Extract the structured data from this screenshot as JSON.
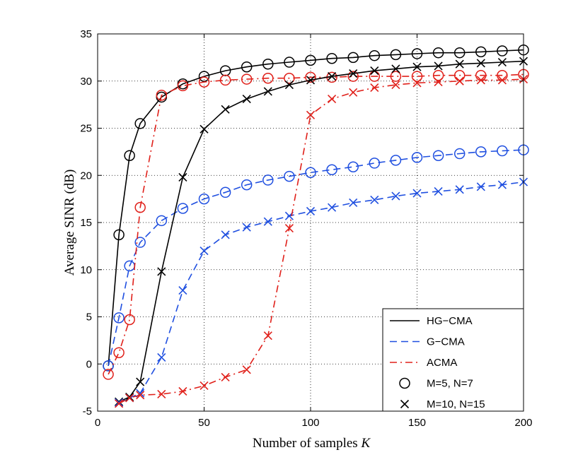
{
  "chart_data": {
    "type": "line",
    "title": "",
    "xlabel": "Number of samples",
    "xlabel_var": "K",
    "ylabel": "Average SINR (dB)",
    "xlim": [
      0,
      200
    ],
    "ylim": [
      -5,
      35
    ],
    "xticks": [
      0,
      50,
      100,
      150,
      200
    ],
    "yticks": [
      -5,
      0,
      5,
      10,
      15,
      20,
      25,
      30,
      35
    ],
    "grid": true,
    "legend_position": "bottom-right",
    "legend": [
      {
        "label": "HG−CMA",
        "kind": "line",
        "color": "#000000",
        "dash": "solid"
      },
      {
        "label": "G−CMA",
        "kind": "line",
        "color": "#1f4fe0",
        "dash": "dashed"
      },
      {
        "label": "ACMA",
        "kind": "line",
        "color": "#e0201a",
        "dash": "dashdot"
      },
      {
        "label": "M=5, N=7",
        "kind": "marker",
        "marker": "circle",
        "color": "#000000"
      },
      {
        "label": "M=10, N=15",
        "kind": "marker",
        "marker": "x",
        "color": "#000000"
      }
    ],
    "series": [
      {
        "name": "HG-CMA M=5, N=7",
        "color": "#000000",
        "dash": "solid",
        "marker": "circle",
        "x": [
          5,
          10,
          15,
          20,
          30,
          40,
          50,
          60,
          70,
          80,
          90,
          100,
          110,
          120,
          130,
          140,
          150,
          160,
          170,
          180,
          190,
          200
        ],
        "y": [
          -0.2,
          13.7,
          22.1,
          25.5,
          28.3,
          29.7,
          30.5,
          31.1,
          31.5,
          31.8,
          32.0,
          32.2,
          32.4,
          32.5,
          32.7,
          32.8,
          32.9,
          33.0,
          33.0,
          33.1,
          33.2,
          33.3
        ]
      },
      {
        "name": "G-CMA M=5, N=7",
        "color": "#1f4fe0",
        "dash": "dashed",
        "marker": "circle",
        "x": [
          5,
          10,
          15,
          20,
          30,
          40,
          50,
          60,
          70,
          80,
          90,
          100,
          110,
          120,
          130,
          140,
          150,
          160,
          170,
          180,
          190,
          200
        ],
        "y": [
          -0.2,
          4.9,
          10.4,
          12.9,
          15.2,
          16.5,
          17.5,
          18.2,
          19.0,
          19.5,
          19.9,
          20.3,
          20.6,
          20.9,
          21.3,
          21.6,
          21.9,
          22.1,
          22.3,
          22.5,
          22.6,
          22.7
        ]
      },
      {
        "name": "ACMA M=5, N=7",
        "color": "#e0201a",
        "dash": "dashdot",
        "marker": "circle",
        "x": [
          5,
          10,
          15,
          20,
          30,
          40,
          50,
          60,
          70,
          80,
          90,
          100,
          110,
          120,
          130,
          140,
          150,
          160,
          170,
          180,
          190,
          200
        ],
        "y": [
          -1.1,
          1.2,
          4.7,
          16.6,
          28.5,
          29.5,
          29.9,
          30.1,
          30.2,
          30.3,
          30.3,
          30.4,
          30.4,
          30.5,
          30.5,
          30.5,
          30.5,
          30.6,
          30.6,
          30.6,
          30.6,
          30.7
        ]
      },
      {
        "name": "HG-CMA M=10, N=15",
        "color": "#000000",
        "dash": "solid",
        "marker": "x",
        "x": [
          10,
          15,
          20,
          30,
          40,
          50,
          60,
          70,
          80,
          90,
          100,
          110,
          120,
          130,
          140,
          150,
          160,
          170,
          180,
          190,
          200
        ],
        "y": [
          -4.0,
          -3.5,
          -1.9,
          9.8,
          19.8,
          24.9,
          27.0,
          28.1,
          28.9,
          29.6,
          30.1,
          30.5,
          30.8,
          31.1,
          31.3,
          31.5,
          31.6,
          31.8,
          31.9,
          32.0,
          32.1
        ]
      },
      {
        "name": "G-CMA M=10, N=15",
        "color": "#1f4fe0",
        "dash": "dashed",
        "marker": "x",
        "x": [
          10,
          15,
          20,
          30,
          40,
          50,
          60,
          70,
          80,
          90,
          100,
          110,
          120,
          130,
          140,
          150,
          160,
          170,
          180,
          190,
          200
        ],
        "y": [
          -4.1,
          -3.6,
          -3.1,
          0.7,
          7.8,
          12.0,
          13.7,
          14.5,
          15.1,
          15.7,
          16.2,
          16.6,
          17.1,
          17.4,
          17.8,
          18.1,
          18.3,
          18.5,
          18.8,
          19.0,
          19.3
        ]
      },
      {
        "name": "ACMA M=10, N=15",
        "color": "#e0201a",
        "dash": "dashdot",
        "marker": "x",
        "x": [
          10,
          15,
          20,
          30,
          40,
          50,
          60,
          70,
          80,
          90,
          100,
          110,
          120,
          130,
          140,
          150,
          160,
          170,
          180,
          190,
          200
        ],
        "y": [
          -4.2,
          -3.6,
          -3.3,
          -3.2,
          -2.9,
          -2.3,
          -1.4,
          -0.6,
          3.0,
          14.4,
          26.4,
          28.1,
          28.8,
          29.3,
          29.6,
          29.8,
          29.9,
          30.0,
          30.1,
          30.1,
          30.2
        ]
      }
    ]
  }
}
